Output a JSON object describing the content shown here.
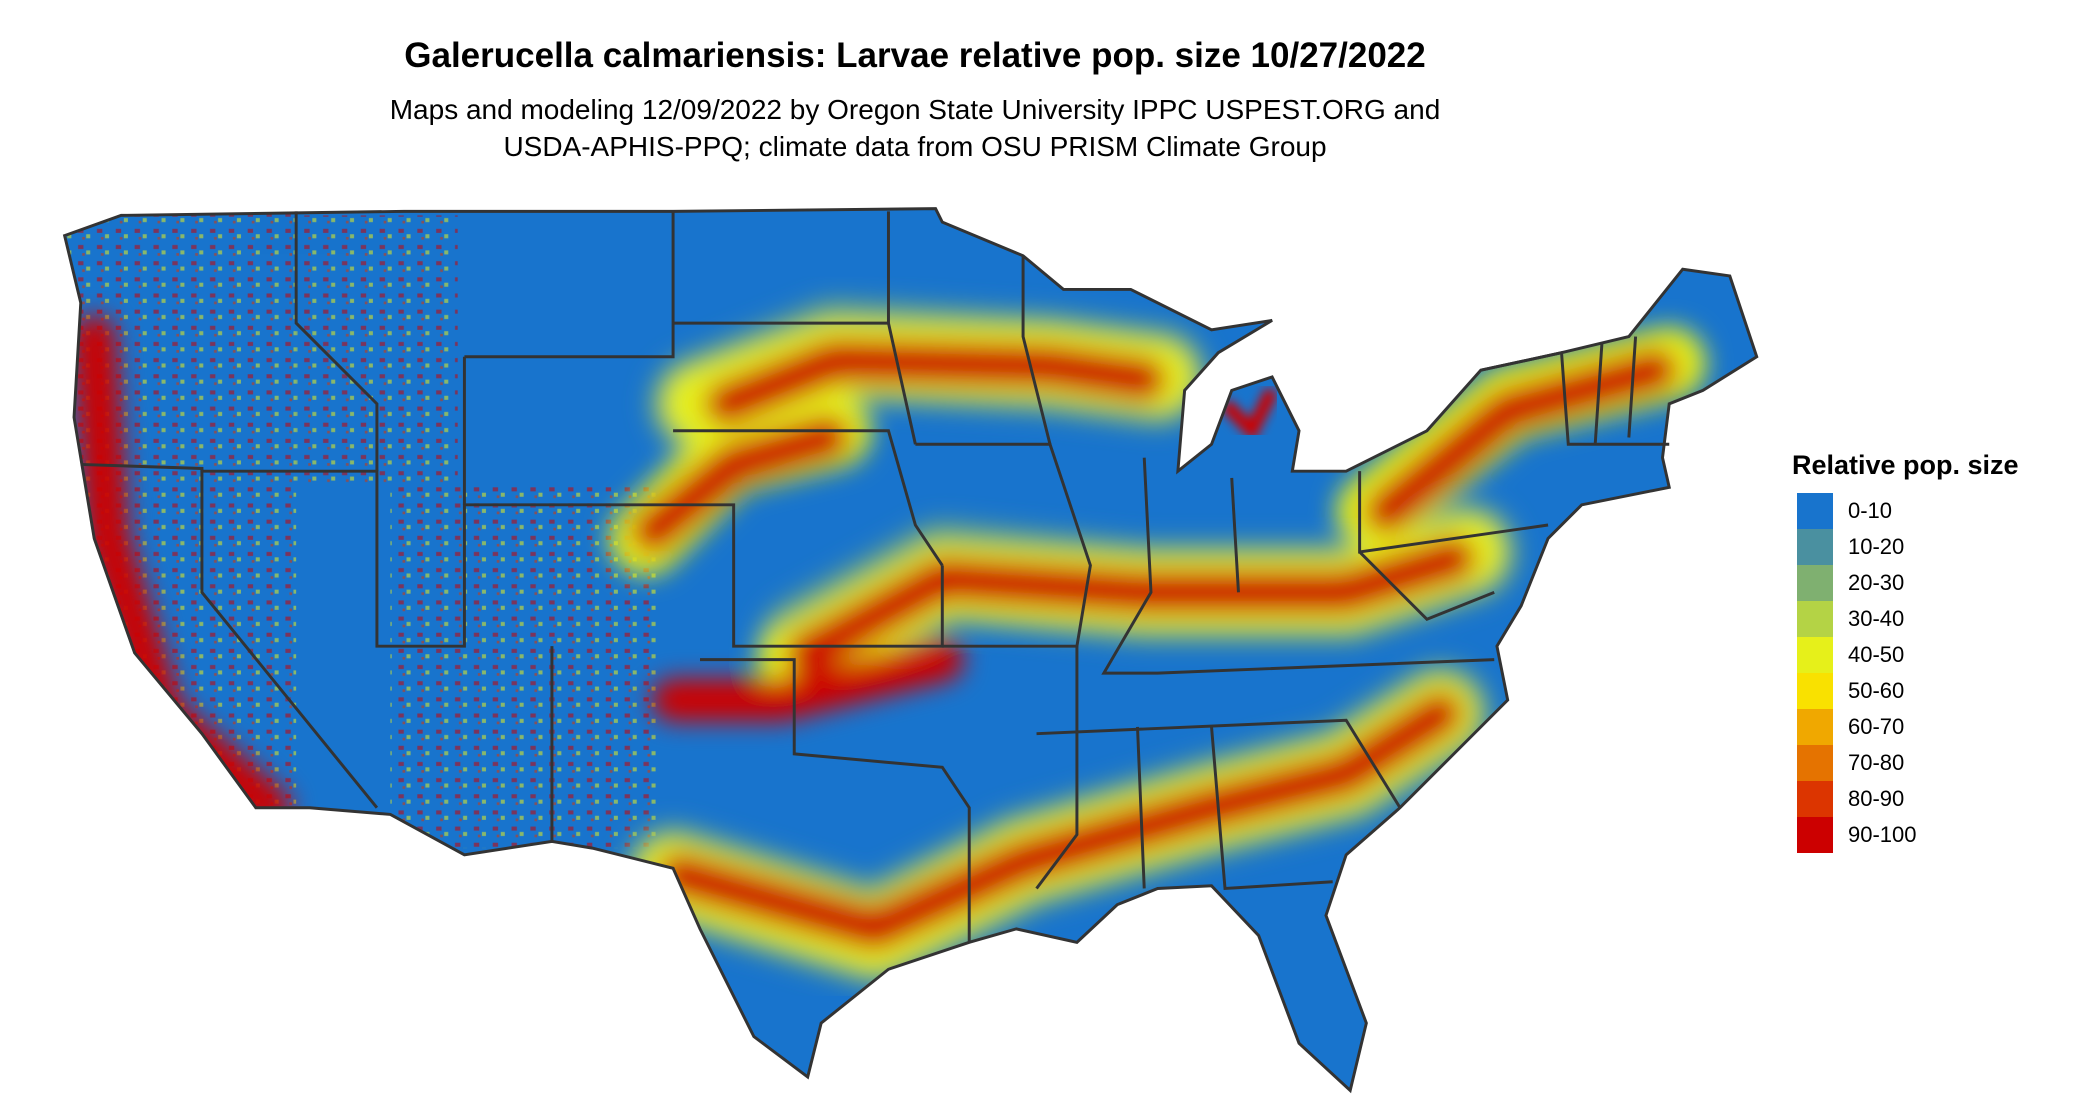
{
  "title": "Galerucella calmariensis: Larvae relative pop. size 10/27/2022",
  "subtitle_lines": [
    "Maps and modeling 12/09/2022 by Oregon State University IPPC USPEST.ORG and",
    "USDA-APHIS-PPQ; climate data from OSU PRISM Climate Group"
  ],
  "legend": {
    "title": "Relative pop. size",
    "items": [
      {
        "label": "0-10",
        "color": "#1874CD"
      },
      {
        "label": "10-20",
        "color": "#4A90A0"
      },
      {
        "label": "20-30",
        "color": "#7FB070"
      },
      {
        "label": "30-40",
        "color": "#B4D345"
      },
      {
        "label": "40-50",
        "color": "#E6F01A"
      },
      {
        "label": "50-60",
        "color": "#F9E100"
      },
      {
        "label": "60-70",
        "color": "#F0A800"
      },
      {
        "label": "70-80",
        "color": "#E57300"
      },
      {
        "label": "80-90",
        "color": "#DC3500"
      },
      {
        "label": "90-100",
        "color": "#CC0000"
      }
    ]
  },
  "map": {
    "region": "Contiguous United States",
    "border_color": "#333333"
  }
}
